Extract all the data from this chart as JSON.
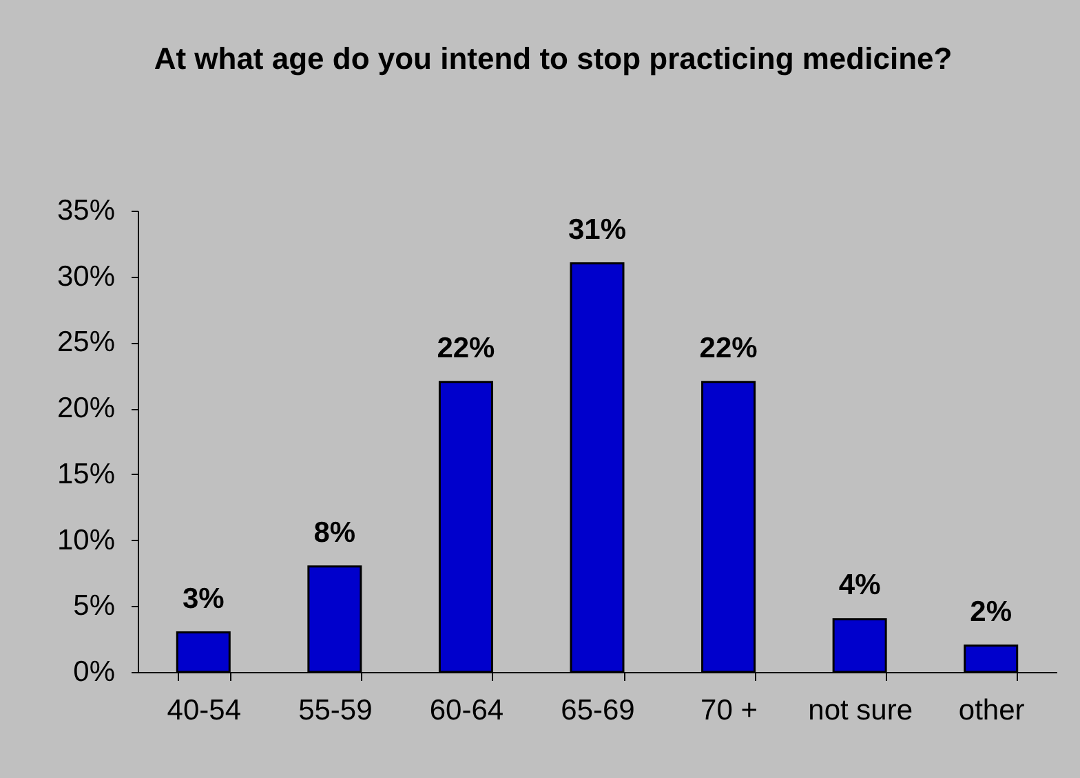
{
  "chart_data": {
    "type": "bar",
    "title": "At what age do you intend to stop practicing medicine?",
    "categories": [
      "40-54",
      "55-59",
      "60-64",
      "65-69",
      "70 +",
      "not sure",
      "other"
    ],
    "values": [
      3,
      8,
      22,
      31,
      22,
      4,
      2
    ],
    "value_labels": [
      "3%",
      "8%",
      "22%",
      "31%",
      "22%",
      "4%",
      "2%"
    ],
    "color": "#0000cc",
    "ylim": [
      0,
      35
    ],
    "yticks": [
      {
        "value": 0,
        "label": "0%"
      },
      {
        "value": 5,
        "label": "5%"
      },
      {
        "value": 10,
        "label": "10%"
      },
      {
        "value": 15,
        "label": "15%"
      },
      {
        "value": 20,
        "label": "20%"
      },
      {
        "value": 25,
        "label": "25%"
      },
      {
        "value": 30,
        "label": "30%"
      },
      {
        "value": 35,
        "label": "35%"
      }
    ]
  }
}
